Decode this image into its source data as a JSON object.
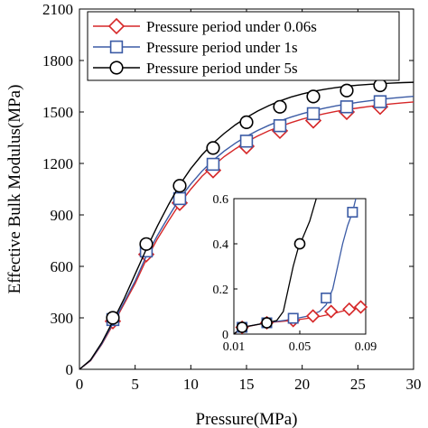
{
  "chart_data": [
    {
      "type": "line",
      "xlabel": "Pressure(MPa)",
      "ylabel": "Effective Bulk Modulus(MPa)",
      "xlim": [
        0,
        30
      ],
      "ylim": [
        0,
        2100
      ],
      "xticks": [
        0,
        5,
        10,
        15,
        20,
        25,
        30
      ],
      "yticks": [
        0,
        300,
        600,
        900,
        1200,
        1500,
        1800,
        2100
      ],
      "grid": false,
      "legend_position": "top-right",
      "series": [
        {
          "name": "Pressure period under 0.06s",
          "color": "#d62728",
          "marker": "diamond",
          "line_points": [
            [
              0,
              0
            ],
            [
              1,
              50
            ],
            [
              2,
              145
            ],
            [
              3,
              260
            ],
            [
              4,
              380
            ],
            [
              5,
              500
            ],
            [
              6,
              640
            ],
            [
              7,
              760
            ],
            [
              8,
              865
            ],
            [
              9,
              965
            ],
            [
              10,
              1050
            ],
            [
              11,
              1125
            ],
            [
              12,
              1185
            ],
            [
              13,
              1240
            ],
            [
              14,
              1285
            ],
            [
              15,
              1325
            ],
            [
              16,
              1360
            ],
            [
              17,
              1390
            ],
            [
              18,
              1415
            ],
            [
              19,
              1438
            ],
            [
              20,
              1458
            ],
            [
              21,
              1475
            ],
            [
              22,
              1490
            ],
            [
              23,
              1503
            ],
            [
              24,
              1514
            ],
            [
              25,
              1523
            ],
            [
              26,
              1532
            ],
            [
              27,
              1540
            ],
            [
              28,
              1547
            ],
            [
              29,
              1553
            ],
            [
              30,
              1558
            ]
          ],
          "markers": [
            [
              3,
              280
            ],
            [
              6,
              670
            ],
            [
              9,
              970
            ],
            [
              12,
              1160
            ],
            [
              15,
              1300
            ],
            [
              18,
              1390
            ],
            [
              21,
              1450
            ],
            [
              24,
              1500
            ],
            [
              27,
              1530
            ]
          ]
        },
        {
          "name": "Pressure period under 1s",
          "color": "#3b5ba5",
          "marker": "square",
          "line_points": [
            [
              0,
              0
            ],
            [
              1,
              52
            ],
            [
              2,
              148
            ],
            [
              3,
              268
            ],
            [
              4,
              390
            ],
            [
              5,
              515
            ],
            [
              6,
              660
            ],
            [
              7,
              780
            ],
            [
              8,
              890
            ],
            [
              9,
              995
            ],
            [
              10,
              1080
            ],
            [
              11,
              1155
            ],
            [
              12,
              1218
            ],
            [
              13,
              1272
            ],
            [
              14,
              1318
            ],
            [
              15,
              1358
            ],
            [
              16,
              1392
            ],
            [
              17,
              1422
            ],
            [
              18,
              1448
            ],
            [
              19,
              1470
            ],
            [
              20,
              1490
            ],
            [
              21,
              1507
            ],
            [
              22,
              1522
            ],
            [
              23,
              1535
            ],
            [
              24,
              1546
            ],
            [
              25,
              1556
            ],
            [
              26,
              1565
            ],
            [
              27,
              1573
            ],
            [
              28,
              1580
            ],
            [
              29,
              1586
            ],
            [
              30,
              1591
            ]
          ],
          "markers": [
            [
              3,
              290
            ],
            [
              6,
              690
            ],
            [
              9,
              995
            ],
            [
              12,
              1195
            ],
            [
              15,
              1330
            ],
            [
              18,
              1420
            ],
            [
              21,
              1490
            ],
            [
              24,
              1530
            ],
            [
              27,
              1560
            ]
          ]
        },
        {
          "name": "Pressure period under 5s",
          "color": "#000000",
          "marker": "circle",
          "line_points": [
            [
              0,
              0
            ],
            [
              1,
              55
            ],
            [
              2,
              155
            ],
            [
              3,
              280
            ],
            [
              4,
              410
            ],
            [
              5,
              555
            ],
            [
              6,
              700
            ],
            [
              7,
              835
            ],
            [
              8,
              960
            ],
            [
              9,
              1075
            ],
            [
              10,
              1170
            ],
            [
              11,
              1250
            ],
            [
              12,
              1318
            ],
            [
              13,
              1375
            ],
            [
              14,
              1425
            ],
            [
              15,
              1468
            ],
            [
              16,
              1505
            ],
            [
              17,
              1537
            ],
            [
              18,
              1564
            ],
            [
              19,
              1587
            ],
            [
              20,
              1605
            ],
            [
              21,
              1620
            ],
            [
              22,
              1632
            ],
            [
              23,
              1642
            ],
            [
              24,
              1650
            ],
            [
              25,
              1656
            ],
            [
              26,
              1661
            ],
            [
              27,
              1665
            ],
            [
              28,
              1668
            ],
            [
              29,
              1671
            ],
            [
              30,
              1673
            ]
          ],
          "markers": [
            [
              3,
              300
            ],
            [
              6,
              730
            ],
            [
              9,
              1070
            ],
            [
              12,
              1290
            ],
            [
              15,
              1440
            ],
            [
              18,
              1530
            ],
            [
              21,
              1590
            ],
            [
              24,
              1625
            ],
            [
              27,
              1655
            ]
          ]
        }
      ]
    },
    {
      "type": "line",
      "inset": true,
      "xlim": [
        0.01,
        0.09
      ],
      "ylim": [
        0,
        0.6
      ],
      "xticks": [
        0.01,
        0.05,
        0.09
      ],
      "yticks": [
        0,
        0.2,
        0.4,
        0.6
      ],
      "series": [
        {
          "name": "Pressure period under 0.06s",
          "color": "#d62728",
          "marker": "diamond",
          "line_points": [
            [
              0.01,
              0
            ],
            [
              0.016,
              0.03
            ],
            [
              0.03,
              0.05
            ],
            [
              0.045,
              0.06
            ],
            [
              0.06,
              0.075
            ],
            [
              0.07,
              0.09
            ],
            [
              0.08,
              0.11
            ],
            [
              0.088,
              0.12
            ]
          ],
          "markers": [
            [
              0.015,
              0.03
            ],
            [
              0.03,
              0.05
            ],
            [
              0.046,
              0.06
            ],
            [
              0.058,
              0.08
            ],
            [
              0.069,
              0.1
            ],
            [
              0.08,
              0.11
            ],
            [
              0.087,
              0.12
            ]
          ]
        },
        {
          "name": "Pressure period under 1s",
          "color": "#3b5ba5",
          "marker": "square",
          "line_points": [
            [
              0.01,
              0
            ],
            [
              0.015,
              0.03
            ],
            [
              0.03,
              0.05
            ],
            [
              0.045,
              0.065
            ],
            [
              0.055,
              0.08
            ],
            [
              0.062,
              0.1
            ],
            [
              0.066,
              0.13
            ],
            [
              0.07,
              0.2
            ],
            [
              0.073,
              0.3
            ],
            [
              0.076,
              0.4
            ],
            [
              0.079,
              0.48
            ],
            [
              0.082,
              0.54
            ],
            [
              0.084,
              0.6
            ]
          ],
          "markers": [
            [
              0.015,
              0.03
            ],
            [
              0.03,
              0.05
            ],
            [
              0.046,
              0.07
            ],
            [
              0.066,
              0.16
            ],
            [
              0.082,
              0.54
            ]
          ]
        },
        {
          "name": "Pressure period under 5s",
          "color": "#000000",
          "marker": "circle",
          "line_points": [
            [
              0.01,
              0
            ],
            [
              0.015,
              0.03
            ],
            [
              0.03,
              0.05
            ],
            [
              0.036,
              0.06
            ],
            [
              0.04,
              0.1
            ],
            [
              0.043,
              0.2
            ],
            [
              0.046,
              0.3
            ],
            [
              0.049,
              0.38
            ],
            [
              0.052,
              0.43
            ],
            [
              0.056,
              0.5
            ],
            [
              0.06,
              0.6
            ]
          ],
          "markers": [
            [
              0.015,
              0.03
            ],
            [
              0.03,
              0.05
            ],
            [
              0.05,
              0.4
            ]
          ]
        }
      ]
    }
  ]
}
